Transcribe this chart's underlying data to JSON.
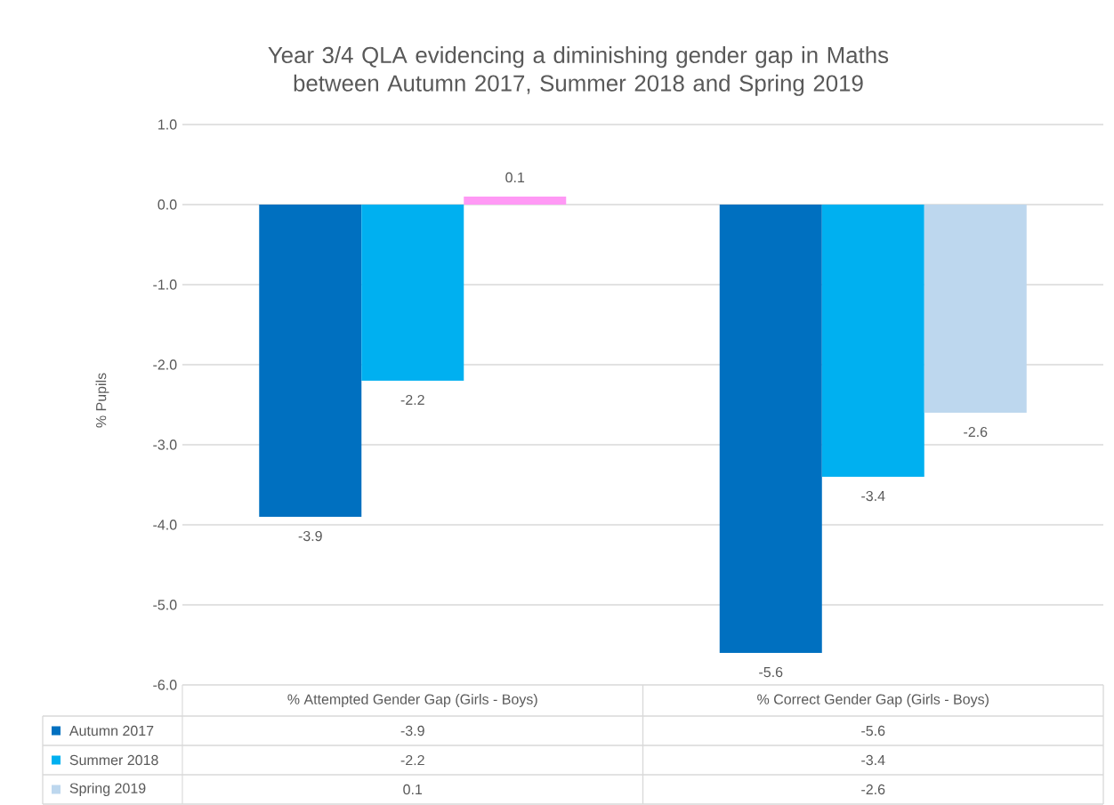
{
  "chart_data": {
    "type": "bar",
    "title": "Year 3/4 QLA evidencing a diminishing gender gap in Maths between Autumn 2017, Summer 2018 and Spring 2019",
    "ylabel": "% Pupils",
    "categories": [
      "% Attempted Gender Gap (Girls - Boys)",
      "% Correct Gender Gap (Girls - Boys)"
    ],
    "series": [
      {
        "name": "Autumn 2017",
        "color": "#0070c0",
        "values": [
          -3.9,
          -5.6
        ],
        "value_labels": [
          "-3.9",
          "-5.6"
        ]
      },
      {
        "name": "Summer 2018",
        "color": "#00b0f0",
        "values": [
          -2.2,
          -3.4
        ],
        "value_labels": [
          "-2.2",
          "-3.4"
        ]
      },
      {
        "name": "Spring 2019",
        "color": "#bdd7ee",
        "colors": [
          "#ff99f5",
          "#bdd7ee"
        ],
        "values": [
          0.1,
          -2.6
        ],
        "value_labels": [
          "0.1",
          "-2.6"
        ]
      }
    ],
    "ylim": [
      -6,
      1
    ],
    "yticks": [
      {
        "value": 1,
        "label": "1.0"
      },
      {
        "value": 0,
        "label": "0.0"
      },
      {
        "value": -1,
        "label": "-1.0"
      },
      {
        "value": -2,
        "label": "-2.0"
      },
      {
        "value": -3,
        "label": "-3.0"
      },
      {
        "value": -4,
        "label": "-4.0"
      },
      {
        "value": -5,
        "label": "-5.0"
      },
      {
        "value": -6,
        "label": "-6.0"
      }
    ],
    "grid": "y",
    "data_labels": true,
    "legend": "bottom"
  }
}
